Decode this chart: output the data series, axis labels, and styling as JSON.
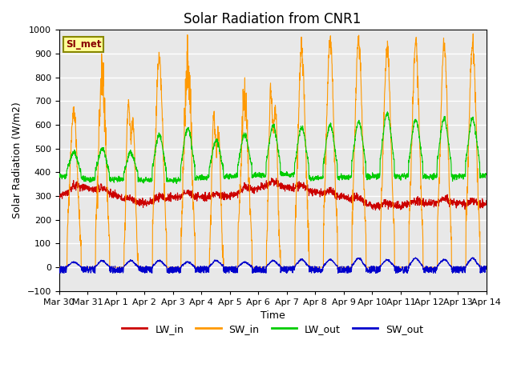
{
  "title": "Solar Radiation from CNR1",
  "xlabel": "Time",
  "ylabel": "Solar Radiation (W/m2)",
  "ylim": [
    -100,
    1000
  ],
  "x_tick_labels": [
    "Mar 30",
    "Mar 31",
    "Apr 1",
    "Apr 2",
    "Apr 3",
    "Apr 4",
    "Apr 5",
    "Apr 6",
    "Apr 7",
    "Apr 8",
    "Apr 9",
    "Apr 10",
    "Apr 11",
    "Apr 12",
    "Apr 13",
    "Apr 14"
  ],
  "annotation_text": "SI_met",
  "annotation_box_color": "#FFFF99",
  "annotation_border_color": "#888800",
  "annotation_text_color": "#880000",
  "colors": {
    "LW_in": "#CC0000",
    "SW_in": "#FF9900",
    "LW_out": "#00CC00",
    "SW_out": "#0000CC"
  },
  "background_color": "#E8E8E8",
  "grid_color": "#FFFFFF",
  "line_width": 0.8,
  "title_fontsize": 12,
  "axis_fontsize": 9,
  "tick_fontsize": 8
}
